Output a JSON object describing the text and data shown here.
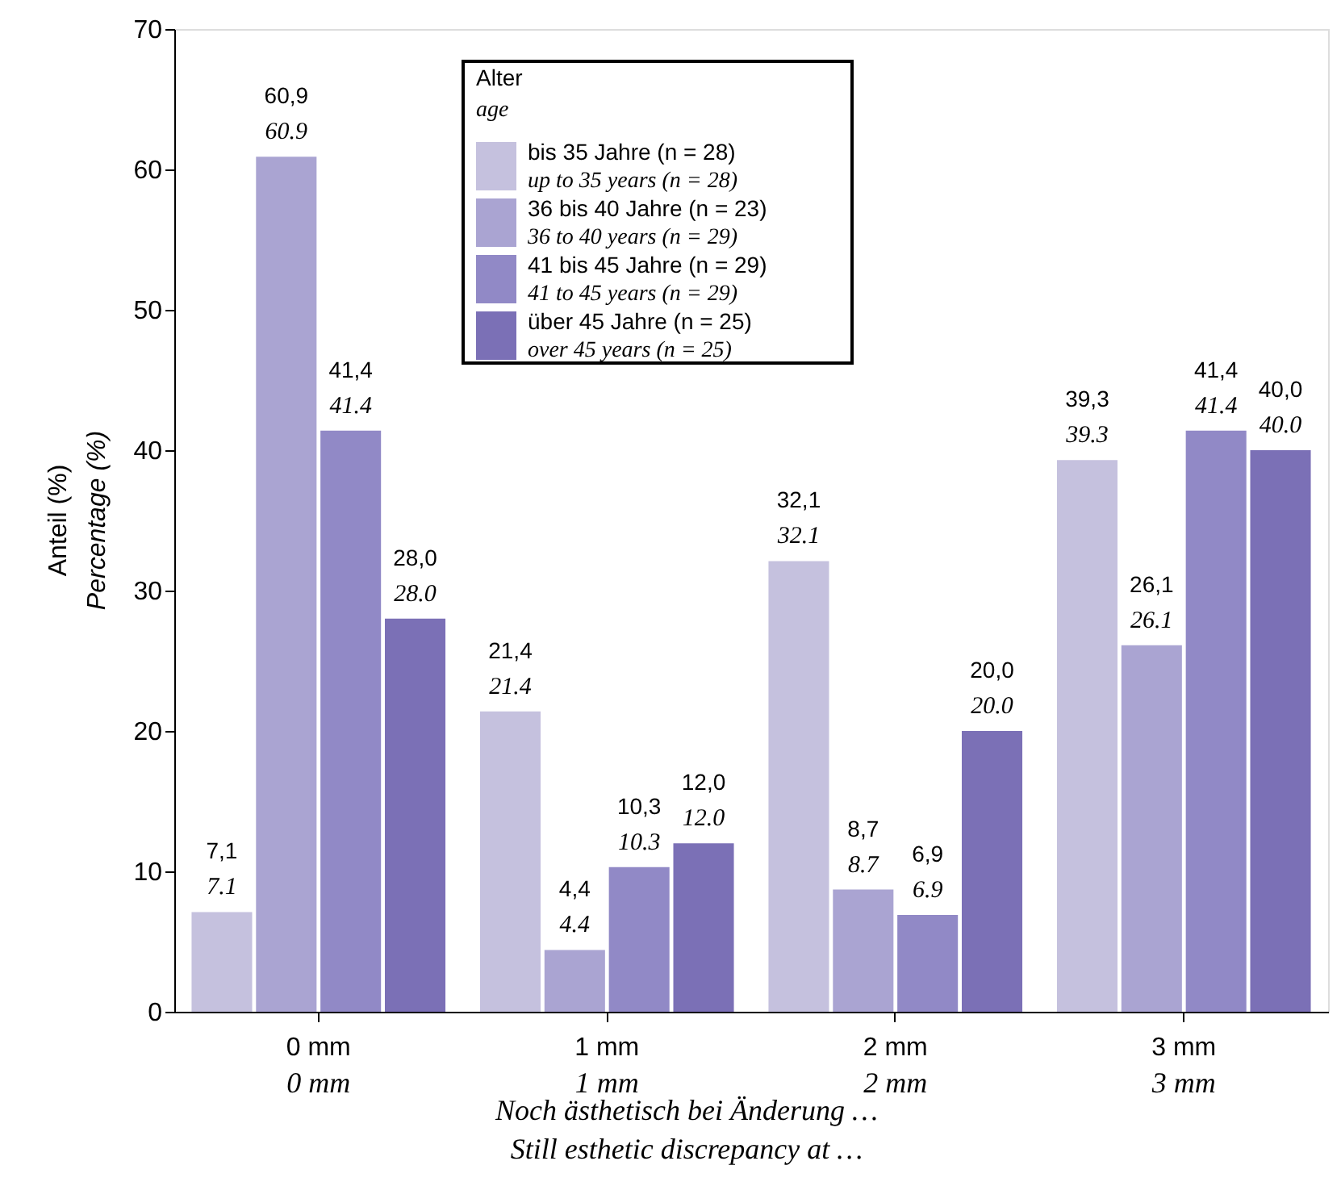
{
  "chart_data": {
    "type": "bar",
    "categories": [
      "0 mm\n0 mm",
      "1 mm\n1 mm",
      "2 mm\n2 mm",
      "3 mm\n3 mm"
    ],
    "xlabel": "Noch ästhetisch bei Änderung …\nStill esthetic discrepancy at …",
    "ylabel": "Anteil (%)\nPercentage (%)",
    "legend_title": "Alter\nage",
    "ylim": [
      0,
      70
    ],
    "yticks": [
      0,
      10,
      20,
      30,
      40,
      50,
      60,
      70
    ],
    "grid": false,
    "legend": "top",
    "series": [
      {
        "name": "bis 35 Jahre (n = 28)\nup to 35 years (n = 28)",
        "color": "#c5c1de",
        "values": [
          7.1,
          21.4,
          32.1,
          39.3
        ],
        "value_labels": [
          "7,1\n7.1",
          "21,4\n21.4",
          "32,1\n32.1",
          "39,3\n39.3"
        ]
      },
      {
        "name": "36 bis 40 Jahre (n = 23)\n36 to 40 years (n = 29)",
        "color": "#aaa4d2",
        "values": [
          60.9,
          4.4,
          8.7,
          26.1
        ],
        "value_labels": [
          "60,9\n60.9",
          "4,4\n4.4",
          "8,7\n8.7",
          "26,1\n26.1"
        ]
      },
      {
        "name": "41 bis 45 Jahre (n = 29)\n41 to 45 years (n = 29)",
        "color": "#9189c6",
        "values": [
          41.4,
          10.3,
          6.9,
          41.4
        ],
        "value_labels": [
          "41,4\n41.4",
          "10,3\n10.3",
          "6,9\n6.9",
          "41,4\n41.4"
        ]
      },
      {
        "name": "über 45 Jahre (n = 25)\nover 45 years (n = 25)",
        "color": "#7b70b6",
        "values": [
          28.0,
          12.0,
          20.0,
          40.0
        ],
        "value_labels": [
          "28,0\n28.0",
          "12,0\n12.0",
          "20,0\n20.0",
          "40,0\n40.0"
        ]
      }
    ]
  }
}
